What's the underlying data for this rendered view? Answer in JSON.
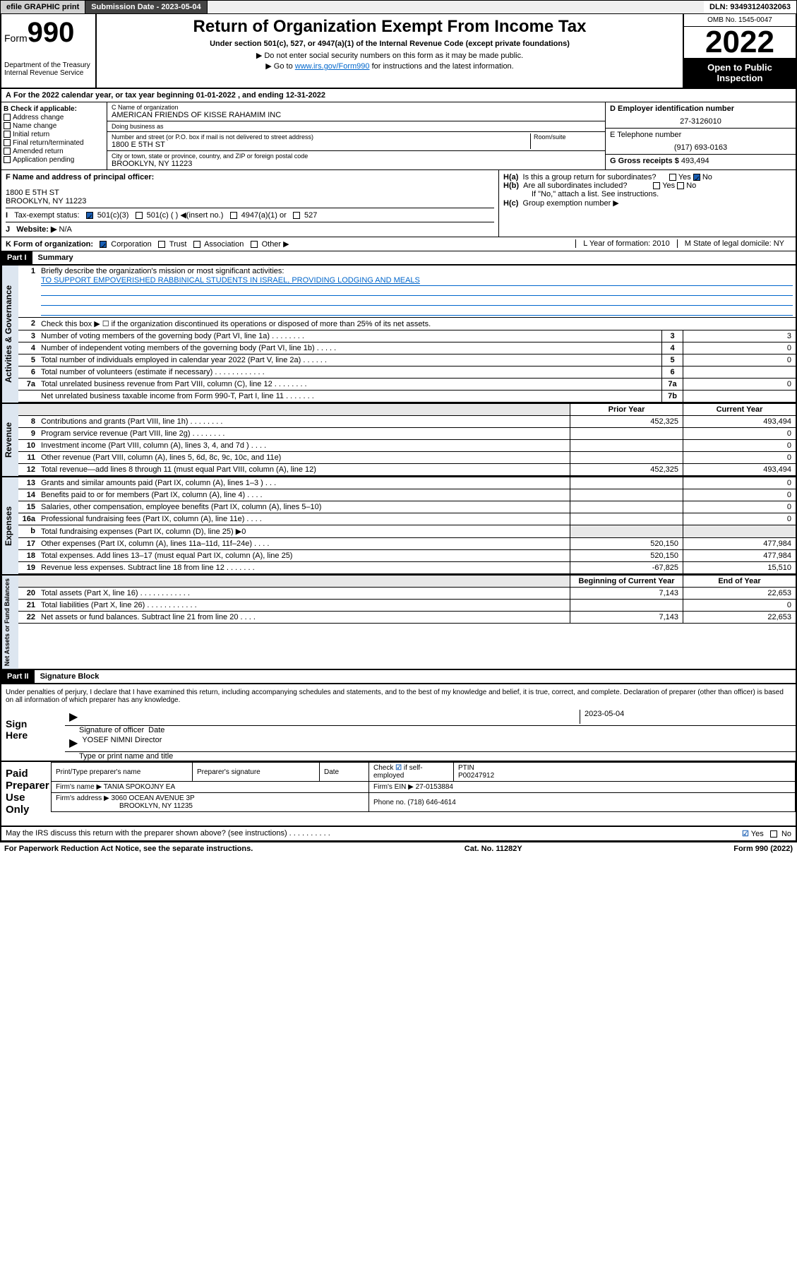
{
  "topbar": {
    "efile": "efile GRAPHIC print",
    "subdate_label": "Submission Date - 2023-05-04",
    "dln": "DLN: 93493124032063"
  },
  "header": {
    "form_prefix": "Form",
    "form_num": "990",
    "dept": "Department of the Treasury\nInternal Revenue Service",
    "title": "Return of Organization Exempt From Income Tax",
    "sub": "Under section 501(c), 527, or 4947(a)(1) of the Internal Revenue Code (except private foundations)",
    "note1": "Do not enter social security numbers on this form as it may be made public.",
    "note2_pre": "Go to ",
    "note2_link": "www.irs.gov/Form990",
    "note2_post": " for instructions and the latest information.",
    "omb": "OMB No. 1545-0047",
    "year": "2022",
    "open": "Open to Public Inspection"
  },
  "A": {
    "text": "For the 2022 calendar year, or tax year beginning 01-01-2022    , and ending 12-31-2022"
  },
  "B": {
    "hdr": "B Check if applicable:",
    "items": [
      "Address change",
      "Name change",
      "Initial return",
      "Final return/terminated",
      "Amended return",
      "Application pending"
    ]
  },
  "C": {
    "name_lbl": "C Name of organization",
    "name": "AMERICAN FRIENDS OF KISSE RAHAMIM INC",
    "dba_lbl": "Doing business as",
    "street_lbl": "Number and street (or P.O. box if mail is not delivered to street address)",
    "room_lbl": "Room/suite",
    "street": "1800 E 5TH ST",
    "city_lbl": "City or town, state or province, country, and ZIP or foreign postal code",
    "city": "BROOKLYN, NY  11223"
  },
  "D": {
    "ein_lbl": "D Employer identification number",
    "ein": "27-3126010",
    "phone_lbl": "E Telephone number",
    "phone": "(917) 693-0163",
    "gross_lbl": "G Gross receipts $",
    "gross": "493,494"
  },
  "F": {
    "lbl": "F Name and address of principal officer:",
    "addr1": "1800 E 5TH ST",
    "addr2": "BROOKLYN, NY  11223"
  },
  "H": {
    "a": "Is this a group return for subordinates?",
    "a_yes": "Yes",
    "a_no": "No",
    "b": "Are all subordinates included?",
    "b_yes": "Yes",
    "b_no": "No",
    "b_note": "If \"No,\" attach a list. See instructions.",
    "c": "Group exemption number ▶"
  },
  "I": {
    "lbl": "Tax-exempt status:",
    "opt1": "501(c)(3)",
    "opt2": "501(c) (  ) ◀(insert no.)",
    "opt3": "4947(a)(1) or",
    "opt4": "527"
  },
  "J": {
    "lbl": "Website: ▶",
    "val": "N/A"
  },
  "K": {
    "lbl": "K Form of organization:",
    "opts": [
      "Corporation",
      "Trust",
      "Association",
      "Other ▶"
    ],
    "L": "L Year of formation: 2010",
    "M": "M State of legal domicile: NY"
  },
  "partI": {
    "hdr": "Part I",
    "title": "Summary"
  },
  "summary": {
    "l1_lbl": "Briefly describe the organization's mission or most significant activities:",
    "l1_val": "TO SUPPORT EMPOVERISHED RABBINICAL STUDENTS IN ISRAEL, PROVIDING LODGING AND MEALS",
    "l2": "Check this box ▶ ☐ if the organization discontinued its operations or disposed of more than 25% of its net assets.",
    "lines_gov": [
      {
        "n": "3",
        "t": "Number of voting members of the governing body (Part VI, line 1a)  .   .   .   .   .   .   .   .",
        "box": "3",
        "v": "3"
      },
      {
        "n": "4",
        "t": "Number of independent voting members of the governing body (Part VI, line 1b)   .   .   .   .   .",
        "box": "4",
        "v": "0"
      },
      {
        "n": "5",
        "t": "Total number of individuals employed in calendar year 2022 (Part V, line 2a)   .   .   .   .   .   .",
        "box": "5",
        "v": "0"
      },
      {
        "n": "6",
        "t": "Total number of volunteers (estimate if necessary)   .   .   .   .   .   .   .   .   .   .   .   .",
        "box": "6",
        "v": ""
      },
      {
        "n": "7a",
        "t": "Total unrelated business revenue from Part VIII, column (C), line 12   .   .   .   .   .   .   .   .",
        "box": "7a",
        "v": "0"
      },
      {
        "n": "",
        "t": "Net unrelated business taxable income from Form 990-T, Part I, line 11   .   .   .   .   .   .   .",
        "box": "7b",
        "v": ""
      }
    ],
    "prior_hdr": "Prior Year",
    "curr_hdr": "Current Year",
    "rev": [
      {
        "n": "8",
        "t": "Contributions and grants (Part VIII, line 1h)   .   .   .   .   .   .   .   .",
        "p": "452,325",
        "c": "493,494"
      },
      {
        "n": "9",
        "t": "Program service revenue (Part VIII, line 2g)   .   .   .   .   .   .   .   .",
        "p": "",
        "c": "0"
      },
      {
        "n": "10",
        "t": "Investment income (Part VIII, column (A), lines 3, 4, and 7d )   .   .   .   .",
        "p": "",
        "c": "0"
      },
      {
        "n": "11",
        "t": "Other revenue (Part VIII, column (A), lines 5, 6d, 8c, 9c, 10c, and 11e)",
        "p": "",
        "c": "0"
      },
      {
        "n": "12",
        "t": "Total revenue—add lines 8 through 11 (must equal Part VIII, column (A), line 12)",
        "p": "452,325",
        "c": "493,494"
      }
    ],
    "exp": [
      {
        "n": "13",
        "t": "Grants and similar amounts paid (Part IX, column (A), lines 1–3 )   .   .   .",
        "p": "",
        "c": "0"
      },
      {
        "n": "14",
        "t": "Benefits paid to or for members (Part IX, column (A), line 4)   .   .   .   .",
        "p": "",
        "c": "0"
      },
      {
        "n": "15",
        "t": "Salaries, other compensation, employee benefits (Part IX, column (A), lines 5–10)",
        "p": "",
        "c": "0"
      },
      {
        "n": "16a",
        "t": "Professional fundraising fees (Part IX, column (A), line 11e)   .   .   .   .",
        "p": "",
        "c": "0"
      },
      {
        "n": "b",
        "t": "Total fundraising expenses (Part IX, column (D), line 25) ▶0",
        "p": "__shade__",
        "c": "__shade__"
      },
      {
        "n": "17",
        "t": "Other expenses (Part IX, column (A), lines 11a–11d, 11f–24e)   .   .   .   .",
        "p": "520,150",
        "c": "477,984"
      },
      {
        "n": "18",
        "t": "Total expenses. Add lines 13–17 (must equal Part IX, column (A), line 25)",
        "p": "520,150",
        "c": "477,984"
      },
      {
        "n": "19",
        "t": "Revenue less expenses. Subtract line 18 from line 12   .   .   .   .   .   .   .",
        "p": "-67,825",
        "c": "15,510"
      }
    ],
    "bal_hdr1": "Beginning of Current Year",
    "bal_hdr2": "End of Year",
    "bal": [
      {
        "n": "20",
        "t": "Total assets (Part X, line 16)   .   .   .   .   .   .   .   .   .   .   .   .",
        "p": "7,143",
        "c": "22,653"
      },
      {
        "n": "21",
        "t": "Total liabilities (Part X, line 26)   .   .   .   .   .   .   .   .   .   .   .   .",
        "p": "",
        "c": "0"
      },
      {
        "n": "22",
        "t": "Net assets or fund balances. Subtract line 21 from line 20   .   .   .   .",
        "p": "7,143",
        "c": "22,653"
      }
    ],
    "side_gov": "Activities & Governance",
    "side_rev": "Revenue",
    "side_exp": "Expenses",
    "side_bal": "Net Assets or Fund Balances"
  },
  "partII": {
    "hdr": "Part II",
    "title": "Signature Block"
  },
  "sig": {
    "perjury": "Under penalties of perjury, I declare that I have examined this return, including accompanying schedules and statements, and to the best of my knowledge and belief, it is true, correct, and complete. Declaration of preparer (other than officer) is based on all information of which preparer has any knowledge.",
    "sign_here": "Sign Here",
    "officer_sig": "Signature of officer",
    "date_lbl": "Date",
    "date_val": "2023-05-04",
    "officer_name": "YOSEF NIMNI Director",
    "type_name": "Type or print name and title",
    "paid": "Paid Preparer Use Only",
    "col_name": "Print/Type preparer's name",
    "col_sig": "Preparer's signature",
    "col_date": "Date",
    "check_self": "Check ☑ if self-employed",
    "ptin_lbl": "PTIN",
    "ptin": "P00247912",
    "firm_name_lbl": "Firm's name    ▶",
    "firm_name": "TANIA SPOKOJNY EA",
    "firm_ein_lbl": "Firm's EIN ▶",
    "firm_ein": "27-0153884",
    "firm_addr_lbl": "Firm's address ▶",
    "firm_addr1": "3060 OCEAN AVENUE 3P",
    "firm_addr2": "BROOKLYN, NY  11235",
    "firm_phone_lbl": "Phone no.",
    "firm_phone": "(718) 646-4614",
    "discuss": "May the IRS discuss this return with the preparer shown above? (see instructions)   .   .   .   .   .   .   .   .   .   .",
    "yes": "Yes",
    "no": "No"
  },
  "footer": {
    "left": "For Paperwork Reduction Act Notice, see the separate instructions.",
    "mid": "Cat. No. 11282Y",
    "right": "Form 990 (2022)"
  },
  "colors": {
    "link": "#0066cc",
    "check": "#1a5fb4",
    "side_bg": "#dde6f0"
  }
}
